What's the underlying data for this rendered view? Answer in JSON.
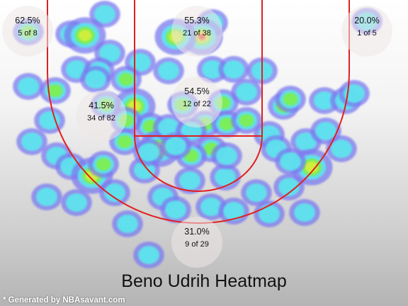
{
  "credit": "* Generated by NBAsavant.com",
  "chart_data": {
    "type": "heatmap",
    "title": "Beno Udrih Heatmap",
    "zones": [
      {
        "id": "left-corner",
        "pct": "62.5%",
        "made": 5,
        "att": 8,
        "label": "5 of 8"
      },
      {
        "id": "restricted-area",
        "pct": "55.3%",
        "made": 21,
        "att": 38,
        "label": "21 of 38"
      },
      {
        "id": "right-corner",
        "pct": "20.0%",
        "made": 1,
        "att": 5,
        "label": "1 of 5"
      },
      {
        "id": "left-midrange",
        "pct": "41.5%",
        "made": 34,
        "att": 82,
        "label": "34 of 82"
      },
      {
        "id": "paint",
        "pct": "54.5%",
        "made": 12,
        "att": 22,
        "label": "12 of 22"
      },
      {
        "id": "top-three",
        "pct": "31.0%",
        "made": 9,
        "att": 29,
        "label": "9 of 29"
      }
    ]
  }
}
